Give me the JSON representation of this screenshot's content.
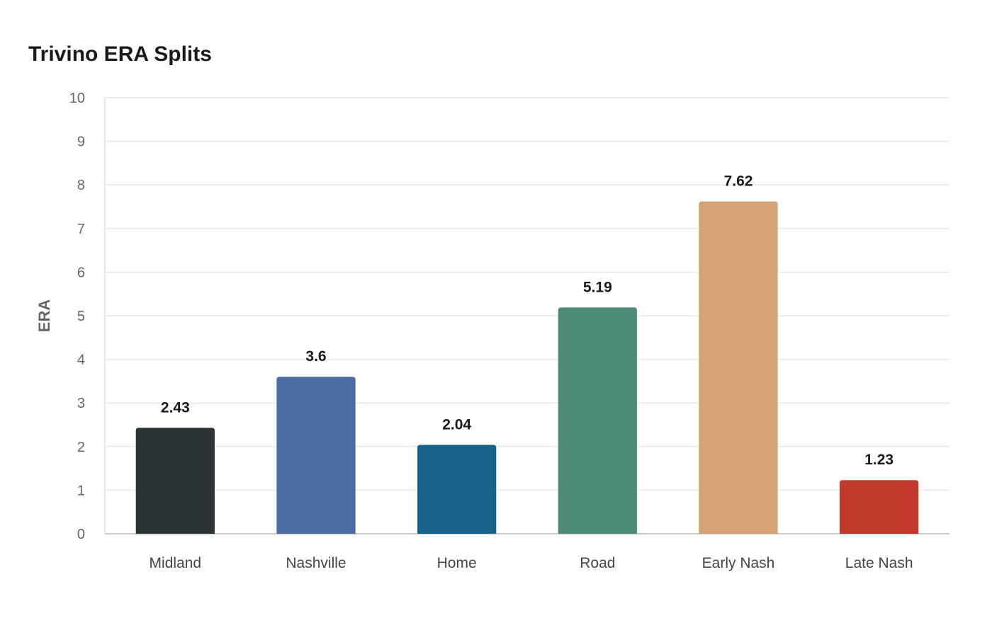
{
  "chart_data": {
    "type": "bar",
    "title": "Trivino ERA Splits",
    "xlabel": "",
    "ylabel": "ERA",
    "ylim": [
      0,
      10
    ],
    "yticks": [
      0,
      1,
      2,
      3,
      4,
      5,
      6,
      7,
      8,
      9,
      10
    ],
    "grid": true,
    "categories": [
      "Midland",
      "Nashville",
      "Home",
      "Road",
      "Early Nash",
      "Late Nash"
    ],
    "values": [
      2.43,
      3.6,
      2.04,
      5.19,
      7.62,
      1.23
    ],
    "value_labels": [
      "2.43",
      "3.6",
      "2.04",
      "5.19",
      "7.62",
      "1.23"
    ],
    "colors": [
      "#2d3436",
      "#4a6ea3",
      "#186287",
      "#4e8c7a",
      "#d4a373",
      "#c0392b"
    ]
  }
}
